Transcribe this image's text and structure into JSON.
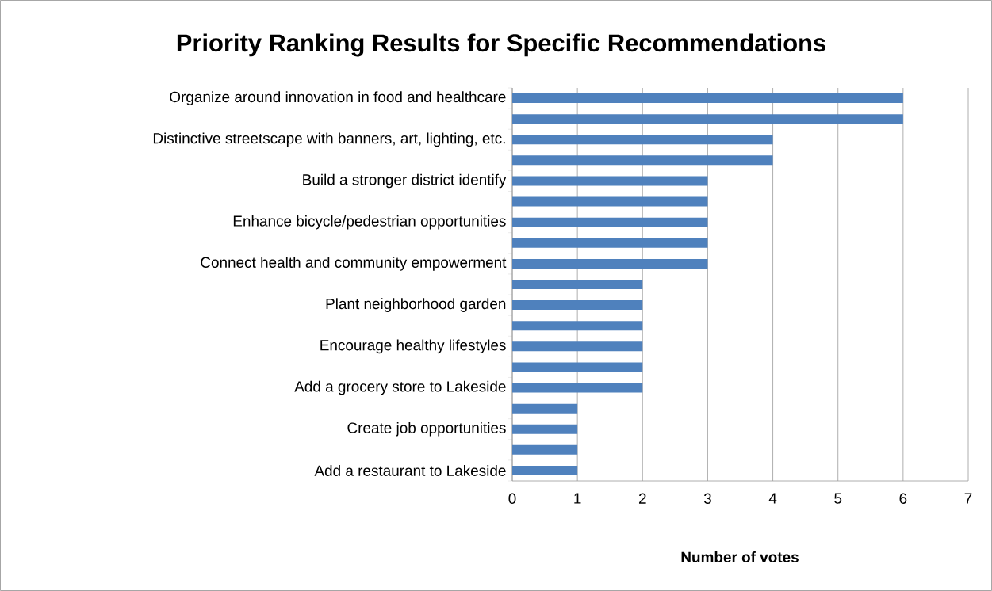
{
  "chart_data": {
    "type": "bar",
    "orientation": "horizontal",
    "title": "Priority Ranking Results for Specific Recommendations",
    "xlabel": "Number of votes",
    "categories": [
      "Organize around innovation in food and healthcare",
      null,
      "Distinctive streetscape with banners, art, lighting, etc.",
      null,
      "Build a stronger district identify",
      null,
      "Enhance bicycle/pedestrian opportunities",
      null,
      "Connect health and community empowerment",
      null,
      "Plant neighborhood garden",
      null,
      "Encourage healthy lifestyles",
      null,
      "Add a grocery store to Lakeside",
      null,
      "Create job opportunities",
      null,
      "Add a restaurant to Lakeside"
    ],
    "values": [
      6,
      6,
      4,
      4,
      3,
      3,
      3,
      3,
      3,
      2,
      2,
      2,
      2,
      2,
      2,
      1,
      1,
      1,
      1
    ],
    "color": "#4f81bd",
    "xlim": [
      0,
      7
    ],
    "xticks": [
      0,
      1,
      2,
      3,
      4,
      5,
      6,
      7
    ],
    "grid": "x"
  }
}
